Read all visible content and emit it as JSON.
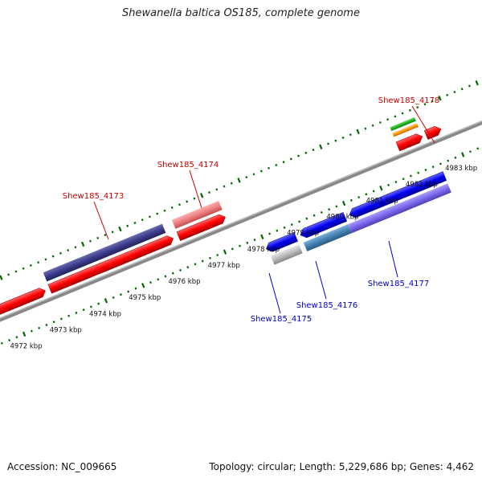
{
  "title": "Shewanella baltica OS185, complete genome",
  "footer": {
    "accession": "Accession: NC_009665",
    "info": "Topology: circular; Length: 5,229,686 bp; Genes: 4,462"
  },
  "ruler_labels": [
    "4972 kbp",
    "4973 kbp",
    "4974 kbp",
    "4975 kbp",
    "4976 kbp",
    "4977 kbp",
    "4978 kbp",
    "4979 kbp",
    "4980 kbp",
    "4981 kbp",
    "4982 kbp",
    "4983 kbp"
  ],
  "gene_labels": {
    "top": [
      "Shew185_4173",
      "Shew185_4174",
      "Shew185_4178"
    ],
    "bottom": [
      "Shew185_4175",
      "Shew185_4176",
      "Shew185_4177"
    ]
  },
  "colors": {
    "forward_gene": "#ff0000",
    "reverse_gene": "#0000ee",
    "tick": "#006600",
    "backbone": "#888888",
    "label_top": "#cc0000",
    "label_bottom": "#0000cc",
    "feature_navy": "#3c3c8c",
    "feature_pink": "#f08080",
    "feature_steel": "#4682b4",
    "feature_violet": "#7b68ee",
    "feature_grey": "#bbbbbb",
    "feature_green": "#22bb22",
    "feature_orange": "#ff9900"
  }
}
